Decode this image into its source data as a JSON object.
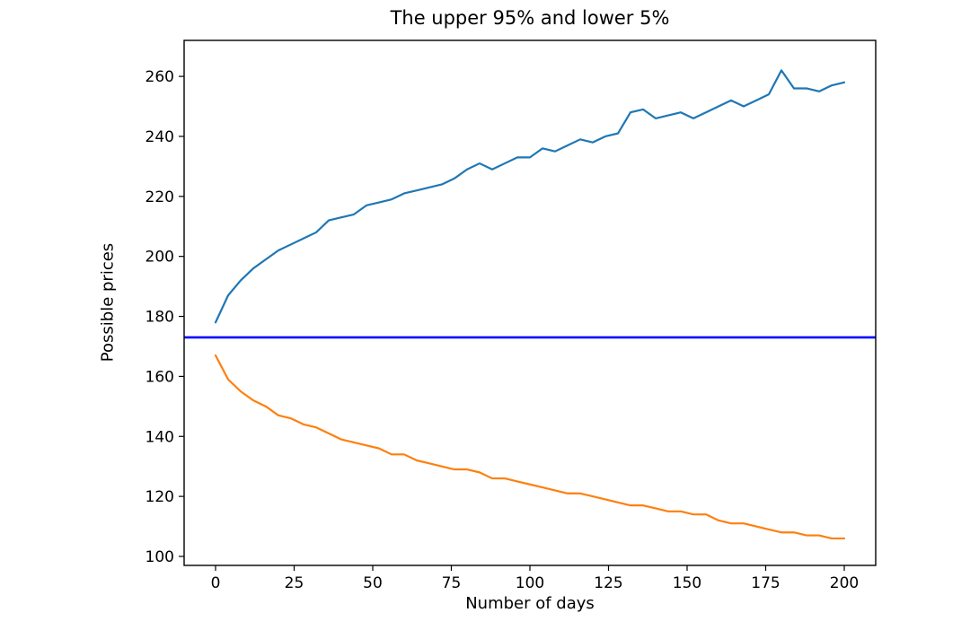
{
  "chart_data": {
    "type": "line",
    "title": "The upper 95% and lower 5%",
    "xlabel": "Number of days",
    "ylabel": "Possible prices",
    "xlim": [
      -10,
      210
    ],
    "ylim": [
      97,
      272
    ],
    "xticks": [
      0,
      25,
      50,
      75,
      100,
      125,
      150,
      175,
      200
    ],
    "yticks": [
      100,
      120,
      140,
      160,
      180,
      200,
      220,
      240,
      260
    ],
    "grid": false,
    "legend": "none",
    "x": [
      0,
      4,
      8,
      12,
      16,
      20,
      24,
      28,
      32,
      36,
      40,
      44,
      48,
      52,
      56,
      60,
      64,
      68,
      72,
      76,
      80,
      84,
      88,
      92,
      96,
      100,
      104,
      108,
      112,
      116,
      120,
      124,
      128,
      132,
      136,
      140,
      144,
      148,
      152,
      156,
      160,
      164,
      168,
      172,
      176,
      180,
      184,
      188,
      192,
      196,
      200
    ],
    "series": [
      {
        "name": "upper 95%",
        "color": "#1f77b4",
        "values": [
          178,
          187,
          192,
          196,
          199,
          202,
          204,
          206,
          208,
          212,
          213,
          214,
          217,
          218,
          219,
          221,
          222,
          223,
          224,
          226,
          229,
          231,
          229,
          231,
          233,
          233,
          236,
          235,
          237,
          239,
          238,
          240,
          241,
          248,
          249,
          246,
          247,
          248,
          246,
          248,
          250,
          252,
          250,
          252,
          254,
          262,
          256,
          256,
          255,
          257,
          258
        ]
      },
      {
        "name": "lower 5%",
        "color": "#ff7f0e",
        "values": [
          167,
          159,
          155,
          152,
          150,
          147,
          146,
          144,
          143,
          141,
          139,
          138,
          137,
          136,
          134,
          134,
          132,
          131,
          130,
          129,
          129,
          128,
          126,
          126,
          125,
          124,
          123,
          122,
          121,
          121,
          120,
          119,
          118,
          117,
          117,
          116,
          115,
          115,
          114,
          114,
          112,
          111,
          111,
          110,
          109,
          108,
          108,
          107,
          107,
          106,
          106
        ]
      }
    ],
    "hline": {
      "value": 173,
      "color": "#0000ff"
    },
    "frame_color": "#000000"
  }
}
